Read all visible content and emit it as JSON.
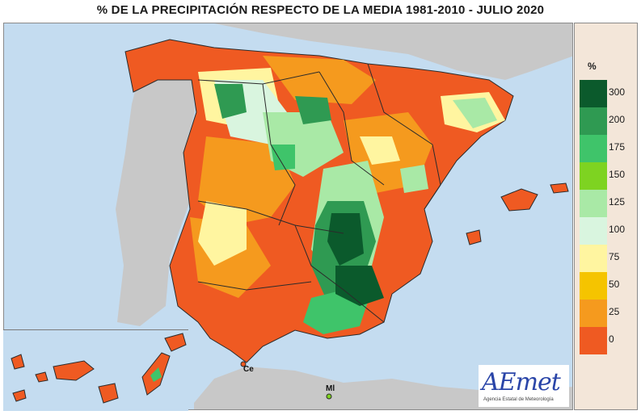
{
  "title": "% DE LA PRECIPITACIÓN RESPECTO DE LA MEDIA 1981-2010 - JULIO 2020",
  "legend": {
    "unit": "%",
    "classes": [
      {
        "label": "300",
        "color": "#0b5a2c"
      },
      {
        "label": "200",
        "color": "#2f9a52"
      },
      {
        "label": "175",
        "color": "#3fc46a"
      },
      {
        "label": "150",
        "color": "#7ed321"
      },
      {
        "label": "125",
        "color": "#a9e9a6"
      },
      {
        "label": "100",
        "color": "#d9f5df"
      },
      {
        "label": "75",
        "color": "#fff5a0"
      },
      {
        "label": "50",
        "color": "#f5c400"
      },
      {
        "label": "25",
        "color": "#f59a1e"
      },
      {
        "label": "0",
        "color": "#ef5a22"
      }
    ]
  },
  "places": {
    "ceuta": "Ce",
    "melilla": "Ml"
  },
  "logo": {
    "text": "AEmet",
    "subtitle": "Agencia Estatal de Meteorología"
  },
  "colors": {
    "sea": "#c4dcf0",
    "land_other": "#c8c8c8",
    "border": "#2b2b2b"
  }
}
